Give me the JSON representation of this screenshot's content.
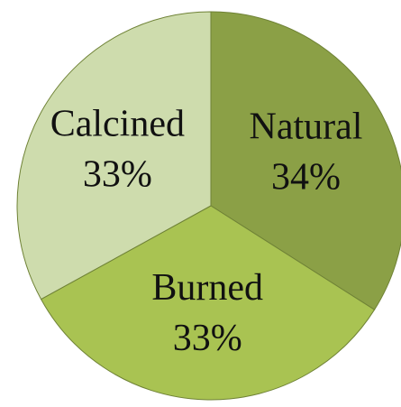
{
  "chart_data": {
    "type": "pie",
    "categories": [
      "Natural",
      "Burned",
      "Calcined"
    ],
    "values": [
      34,
      33,
      33
    ],
    "value_labels": [
      "34%",
      "33%",
      "33%"
    ],
    "colors": [
      "#8ba046",
      "#a9c352",
      "#cedcad"
    ]
  }
}
